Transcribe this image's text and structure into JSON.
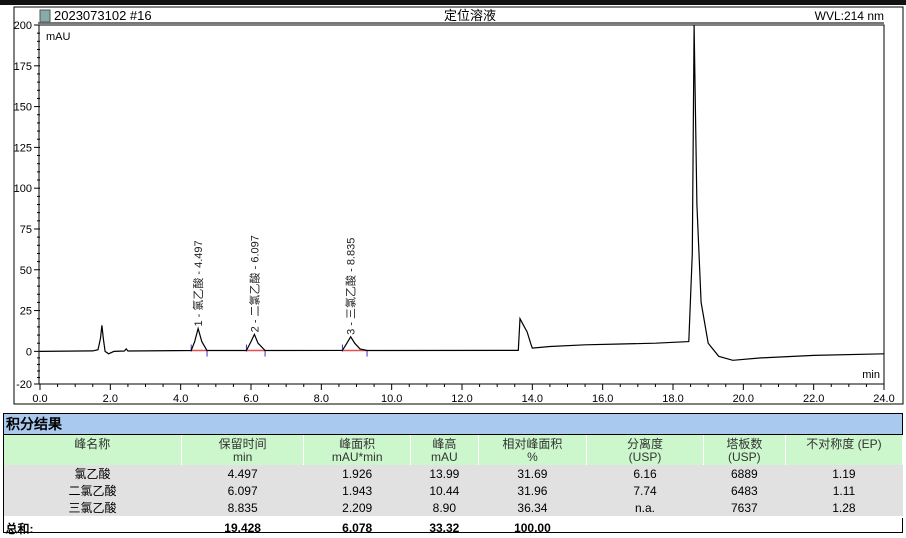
{
  "chart_data": {
    "type": "line",
    "title": "定位溶液",
    "sample": "2023073102 #16",
    "wavelength": "WVL:214 nm",
    "ylabel": "mAU",
    "xlabel": "min",
    "xlim": [
      0,
      24
    ],
    "ylim": [
      -20,
      200
    ],
    "xticks": [
      "0.0",
      "2.0",
      "4.0",
      "6.0",
      "8.0",
      "10.0",
      "12.0",
      "14.0",
      "16.0",
      "18.0",
      "20.0",
      "22.0",
      "24.0"
    ],
    "yticks": [
      "-20",
      "0",
      "25",
      "50",
      "75",
      "100",
      "125",
      "150",
      "175",
      "200"
    ],
    "peaks": [
      {
        "label": "1 - 氯乙酸 - 4.497",
        "rt": 4.497,
        "height": 13.99,
        "start": 4.3,
        "end": 4.75
      },
      {
        "label": "2 - 二氯乙酸 - 6.097",
        "rt": 6.097,
        "height": 10.44,
        "start": 5.87,
        "end": 6.4
      },
      {
        "label": "3 - 三氯乙酸 - 8.835",
        "rt": 8.835,
        "height": 8.9,
        "start": 8.6,
        "end": 9.3
      }
    ],
    "trace": [
      [
        0,
        0
      ],
      [
        1.5,
        0.3
      ],
      [
        1.65,
        1
      ],
      [
        1.72,
        8
      ],
      [
        1.76,
        16
      ],
      [
        1.8,
        8
      ],
      [
        1.85,
        0
      ],
      [
        1.95,
        -1.5
      ],
      [
        2.1,
        0
      ],
      [
        2.4,
        0.2
      ],
      [
        2.45,
        1.5
      ],
      [
        2.5,
        0.2
      ],
      [
        4.3,
        0.5
      ],
      [
        4.4,
        6
      ],
      [
        4.497,
        14
      ],
      [
        4.6,
        6
      ],
      [
        4.75,
        0.5
      ],
      [
        5.87,
        0.5
      ],
      [
        6.0,
        6
      ],
      [
        6.097,
        10.4
      ],
      [
        6.2,
        5
      ],
      [
        6.4,
        0.5
      ],
      [
        8.6,
        0.6
      ],
      [
        8.7,
        4
      ],
      [
        8.835,
        8.9
      ],
      [
        8.95,
        5
      ],
      [
        9.1,
        1.5
      ],
      [
        9.3,
        0.5
      ],
      [
        13.6,
        0.6
      ],
      [
        13.65,
        20
      ],
      [
        13.75,
        16
      ],
      [
        13.85,
        12
      ],
      [
        13.95,
        5
      ],
      [
        14.0,
        2
      ],
      [
        14.5,
        3
      ],
      [
        15.5,
        4
      ],
      [
        16.5,
        4.5
      ],
      [
        17.5,
        5
      ],
      [
        18.45,
        6
      ],
      [
        18.55,
        60
      ],
      [
        18.6,
        200
      ],
      [
        18.68,
        90
      ],
      [
        18.8,
        30
      ],
      [
        19.0,
        5
      ],
      [
        19.3,
        -3
      ],
      [
        19.7,
        -5.5
      ],
      [
        20.5,
        -4
      ],
      [
        22,
        -2.5
      ],
      [
        24,
        -1.5
      ]
    ]
  },
  "table": {
    "title": "积分结果",
    "headers": [
      [
        "峰名称",
        ""
      ],
      [
        "保留时间",
        "min"
      ],
      [
        "峰面积",
        "mAU*min"
      ],
      [
        "峰高",
        "mAU"
      ],
      [
        "相对峰面积",
        "%"
      ],
      [
        "分离度",
        "(USP)"
      ],
      [
        "塔板数",
        "(USP)"
      ],
      [
        "不对称度 (EP)",
        ""
      ]
    ],
    "rows": [
      [
        "氯乙酸",
        "4.497",
        "1.926",
        "13.99",
        "31.69",
        "6.16",
        "6889",
        "1.19"
      ],
      [
        "二氯乙酸",
        "6.097",
        "1.943",
        "10.44",
        "31.96",
        "7.74",
        "6483",
        "1.11"
      ],
      [
        "三氯乙酸",
        "8.835",
        "2.209",
        "8.90",
        "36.34",
        "n.a.",
        "7637",
        "1.28"
      ]
    ],
    "total": [
      "总和:",
      "19.428",
      "6.078",
      "33.32",
      "100.00",
      "",
      "",
      ""
    ]
  }
}
